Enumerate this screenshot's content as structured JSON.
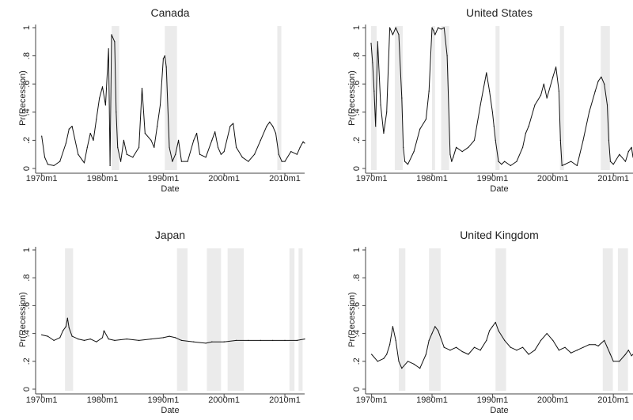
{
  "chart_data": [
    {
      "type": "line",
      "title": "Canada",
      "xlabel": "Date",
      "ylabel": "Pr(Recession)",
      "x_ticks": [
        "1970m1",
        "1980m1",
        "1990m1",
        "2000m1",
        "2010m1"
      ],
      "y_ticks": [
        "0",
        ".2",
        ".4",
        ".6",
        ".8",
        "1"
      ],
      "xlim": [
        "1969m1",
        "2013m4"
      ],
      "ylim": [
        0,
        1
      ],
      "recession_bands": [
        [
          "1981m7",
          "1982m10"
        ],
        [
          "1990m4",
          "1992m4"
        ],
        [
          "2008m10",
          "2009m6"
        ]
      ],
      "series": [
        {
          "x": [
            "1970m1",
            "1970m7",
            "1971m1",
            "1972m1",
            "1973m1",
            "1974m1",
            "1974m7",
            "1975m1",
            "1976m1",
            "1977m1",
            "1977m7",
            "1978m1",
            "1978m7",
            "1979m1",
            "1979m7",
            "1980m1",
            "1980m7",
            "1981m1",
            "1981m4",
            "1981m7",
            "1982m1",
            "1982m4",
            "1982m7",
            "1983m1",
            "1983m7",
            "1984m1",
            "1985m1",
            "1986m1",
            "1986m7",
            "1987m1",
            "1988m1",
            "1988m7",
            "1989m1",
            "1989m7",
            "1990m1",
            "1990m4",
            "1990m7",
            "1991m1",
            "1991m7",
            "1992m1",
            "1992m7",
            "1993m1",
            "1994m1",
            "1995m1",
            "1995m7",
            "1996m1",
            "1997m1",
            "1998m1",
            "1998m7",
            "1999m1",
            "1999m7",
            "2000m1",
            "2001m1",
            "2001m7",
            "2002m1",
            "2003m1",
            "2004m1",
            "2005m1",
            "2006m1",
            "2007m1",
            "2007m7",
            "2008m1",
            "2008m7",
            "2009m1",
            "2009m7",
            "2010m1",
            "2011m1",
            "2012m1",
            "2012m7",
            "2013m1",
            "2013m4"
          ],
          "y": [
            0.23,
            0.08,
            0.03,
            0.02,
            0.05,
            0.18,
            0.28,
            0.3,
            0.1,
            0.04,
            0.15,
            0.25,
            0.2,
            0.35,
            0.5,
            0.58,
            0.45,
            0.85,
            0.02,
            0.95,
            0.9,
            0.4,
            0.15,
            0.05,
            0.2,
            0.1,
            0.08,
            0.15,
            0.57,
            0.25,
            0.2,
            0.15,
            0.3,
            0.45,
            0.78,
            0.8,
            0.72,
            0.15,
            0.05,
            0.1,
            0.2,
            0.05,
            0.05,
            0.2,
            0.25,
            0.1,
            0.08,
            0.2,
            0.26,
            0.15,
            0.1,
            0.12,
            0.3,
            0.32,
            0.15,
            0.08,
            0.05,
            0.1,
            0.2,
            0.3,
            0.33,
            0.3,
            0.25,
            0.1,
            0.05,
            0.05,
            0.12,
            0.1,
            0.15,
            0.19,
            0.18
          ]
        }
      ]
    },
    {
      "type": "line",
      "title": "United States",
      "xlabel": "Date",
      "ylabel": "Pr(Recession)",
      "x_ticks": [
        "1970m1",
        "1980m1",
        "1990m1",
        "2000m1",
        "2010m1"
      ],
      "y_ticks": [
        "0",
        ".2",
        ".4",
        ".6",
        ".8",
        "1"
      ],
      "xlim": [
        "1969m1",
        "2013m4"
      ],
      "ylim": [
        0,
        1
      ],
      "recession_bands": [
        [
          "1969m12",
          "1970m11"
        ],
        [
          "1973m11",
          "1975m3"
        ],
        [
          "1980m1",
          "1980m7"
        ],
        [
          "1981m7",
          "1982m11"
        ],
        [
          "1990m7",
          "1991m3"
        ],
        [
          "2001m3",
          "2001m11"
        ],
        [
          "2007m12",
          "2009m6"
        ]
      ],
      "series": [
        {
          "x": [
            "1969m12",
            "1970m3",
            "1970m6",
            "1970m9",
            "1971m1",
            "1971m7",
            "1972m1",
            "1972m7",
            "1973m1",
            "1973m7",
            "1974m1",
            "1974m7",
            "1975m1",
            "1975m4",
            "1975m7",
            "1976m1",
            "1977m1",
            "1978m1",
            "1979m1",
            "1979m7",
            "1980m1",
            "1980m4",
            "1980m7",
            "1981m1",
            "1981m7",
            "1982m1",
            "1982m7",
            "1983m1",
            "1983m4",
            "1983m7",
            "1984m1",
            "1985m1",
            "1986m1",
            "1987m1",
            "1988m1",
            "1989m1",
            "1989m7",
            "1990m1",
            "1990m4",
            "1990m7",
            "1991m1",
            "1991m7",
            "1992m1",
            "1993m1",
            "1994m1",
            "1995m1",
            "1995m7",
            "1996m1",
            "1997m1",
            "1998m1",
            "1998m7",
            "1999m1",
            "2000m1",
            "2000m7",
            "2001m1",
            "2001m4",
            "2001m7",
            "2002m1",
            "2003m1",
            "2004m1",
            "2005m1",
            "2006m1",
            "2007m1",
            "2007m7",
            "2008m1",
            "2008m7",
            "2009m1",
            "2009m4",
            "2009m7",
            "2010m1",
            "2011m1",
            "2012m1",
            "2012m7",
            "2013m1",
            "2013m4"
          ],
          "y": [
            0.89,
            0.75,
            0.55,
            0.3,
            0.9,
            0.45,
            0.25,
            0.4,
            1.0,
            0.95,
            1.0,
            0.95,
            0.5,
            0.15,
            0.05,
            0.03,
            0.12,
            0.28,
            0.35,
            0.55,
            1.0,
            0.98,
            0.95,
            1.0,
            0.99,
            1.0,
            0.8,
            0.1,
            0.05,
            0.08,
            0.15,
            0.12,
            0.15,
            0.2,
            0.45,
            0.68,
            0.55,
            0.4,
            0.3,
            0.2,
            0.05,
            0.03,
            0.05,
            0.02,
            0.05,
            0.15,
            0.25,
            0.3,
            0.45,
            0.52,
            0.6,
            0.5,
            0.65,
            0.72,
            0.55,
            0.2,
            0.02,
            0.03,
            0.05,
            0.02,
            0.2,
            0.4,
            0.55,
            0.62,
            0.65,
            0.6,
            0.45,
            0.2,
            0.05,
            0.03,
            0.1,
            0.05,
            0.12,
            0.15,
            0.08
          ]
        }
      ]
    },
    {
      "type": "line",
      "title": "Japan",
      "xlabel": "Date",
      "ylabel": "Pr(Recession)",
      "x_ticks": [
        "1970m1",
        "1980m1",
        "1990m1",
        "2000m1",
        "2010m1"
      ],
      "y_ticks": [
        "0",
        ".2",
        ".4",
        ".6",
        ".8",
        "1"
      ],
      "xlim": [
        "1969m1",
        "2013m4"
      ],
      "ylim": [
        0,
        1
      ],
      "recession_bands": [
        [
          "1973m11",
          "1975m3"
        ],
        [
          "1992m4",
          "1994m1"
        ],
        [
          "1997m3",
          "1999m7"
        ],
        [
          "2000m8",
          "2003m4"
        ],
        [
          "2010m10",
          "2011m8"
        ],
        [
          "2012m4",
          "2012m12"
        ]
      ],
      "series": [
        {
          "x": [
            "1970m1",
            "1971m1",
            "1972m1",
            "1973m1",
            "1973m7",
            "1974m1",
            "1974m4",
            "1974m7",
            "1975m1",
            "1976m1",
            "1977m1",
            "1978m1",
            "1979m1",
            "1980m1",
            "1980m4",
            "1981m1",
            "1982m1",
            "1984m1",
            "1986m1",
            "1988m1",
            "1990m1",
            "1991m1",
            "1992m1",
            "1993m1",
            "1995m1",
            "1997m1",
            "1998m1",
            "2000m1",
            "2002m1",
            "2004m1",
            "2006m1",
            "2008m1",
            "2010m1",
            "2012m1",
            "2013m4"
          ],
          "y": [
            0.39,
            0.38,
            0.35,
            0.37,
            0.42,
            0.45,
            0.51,
            0.44,
            0.38,
            0.36,
            0.35,
            0.36,
            0.34,
            0.37,
            0.42,
            0.36,
            0.35,
            0.36,
            0.35,
            0.36,
            0.37,
            0.38,
            0.37,
            0.35,
            0.34,
            0.33,
            0.34,
            0.34,
            0.35,
            0.35,
            0.35,
            0.35,
            0.35,
            0.35,
            0.36
          ]
        }
      ]
    },
    {
      "type": "line",
      "title": "United Kingdom",
      "xlabel": "Date",
      "ylabel": "Pr(Recession)",
      "x_ticks": [
        "1970m1",
        "1980m1",
        "1990m1",
        "2000m1",
        "2010m1"
      ],
      "y_ticks": [
        "0",
        ".2",
        ".4",
        ".6",
        ".8",
        "1"
      ],
      "xlim": [
        "1969m1",
        "2013m4"
      ],
      "ylim": [
        0,
        1
      ],
      "recession_bands": [
        [
          "1974m7",
          "1975m8"
        ],
        [
          "1979m7",
          "1981m6"
        ],
        [
          "1990m7",
          "1992m4"
        ],
        [
          "2008m4",
          "2009m12"
        ],
        [
          "2010m10",
          "2012m6"
        ]
      ],
      "series": [
        {
          "x": [
            "1970m1",
            "1971m1",
            "1972m1",
            "1972m7",
            "1973m1",
            "1973m7",
            "1974m1",
            "1974m7",
            "1975m1",
            "1976m1",
            "1977m1",
            "1978m1",
            "1979m1",
            "1979m7",
            "1980m1",
            "1980m7",
            "1981m1",
            "1982m1",
            "1983m1",
            "1984m1",
            "1985m1",
            "1986m1",
            "1987m1",
            "1988m1",
            "1989m1",
            "1989m7",
            "1990m1",
            "1990m7",
            "1991m1",
            "1992m1",
            "1993m1",
            "1994m1",
            "1995m1",
            "1996m1",
            "1997m1",
            "1998m1",
            "1999m1",
            "2000m1",
            "2001m1",
            "2002m1",
            "2003m1",
            "2004m1",
            "2005m1",
            "2006m1",
            "2007m1",
            "2007m7",
            "2008m1",
            "2008m7",
            "2009m1",
            "2009m7",
            "2010m1",
            "2011m1",
            "2012m1",
            "2012m7",
            "2013m1",
            "2013m4"
          ],
          "y": [
            0.25,
            0.2,
            0.22,
            0.25,
            0.32,
            0.45,
            0.35,
            0.2,
            0.15,
            0.2,
            0.18,
            0.15,
            0.25,
            0.35,
            0.4,
            0.45,
            0.42,
            0.3,
            0.28,
            0.3,
            0.27,
            0.25,
            0.3,
            0.28,
            0.35,
            0.42,
            0.45,
            0.48,
            0.42,
            0.35,
            0.3,
            0.28,
            0.3,
            0.25,
            0.28,
            0.35,
            0.4,
            0.35,
            0.28,
            0.3,
            0.26,
            0.28,
            0.3,
            0.32,
            0.32,
            0.31,
            0.33,
            0.35,
            0.3,
            0.25,
            0.2,
            0.2,
            0.25,
            0.28,
            0.24,
            0.25
          ]
        }
      ]
    }
  ]
}
